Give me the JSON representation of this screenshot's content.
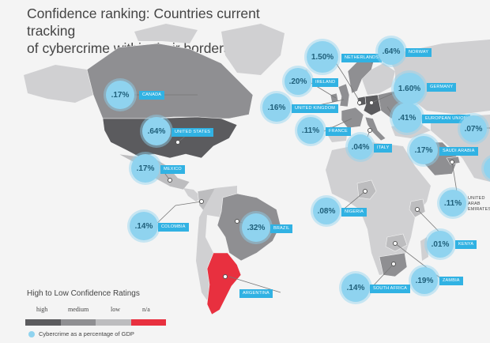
{
  "title": {
    "line1": "Confidence ranking: Countries current tracking",
    "line2": "of cybercrime within their borders"
  },
  "colors": {
    "high": "#5b5b5e",
    "medium": "#8f8f92",
    "low": "#bdbdbf",
    "na": "#e8303f",
    "bubble": "#8fd3ef",
    "tag": "#31b2e3",
    "background": "#f4f4f4",
    "unranked_land": "#d0d0d2"
  },
  "legend": {
    "title": "High to Low Confidence Ratings",
    "levels": [
      "high",
      "medium",
      "low",
      "n/a"
    ],
    "note": "Cybercrime as a percentage of GDP"
  },
  "countries": [
    {
      "name": "CANADA",
      "value": ".17%",
      "rating": "medium"
    },
    {
      "name": "UNITED STATES",
      "value": ".64%",
      "rating": "high"
    },
    {
      "name": "MEXICO",
      "value": ".17%",
      "rating": "low"
    },
    {
      "name": "COLOMBIA",
      "value": ".14%",
      "rating": "low"
    },
    {
      "name": "BRAZIL",
      "value": ".32%",
      "rating": "medium"
    },
    {
      "name": "ARGENTINA",
      "value": "",
      "rating": "n/a"
    },
    {
      "name": "NETHERLANDS",
      "value": "1.50%",
      "rating": "high"
    },
    {
      "name": "NORWAY",
      "value": ".64%",
      "rating": "medium"
    },
    {
      "name": "IRELAND",
      "value": ".20%",
      "rating": "medium"
    },
    {
      "name": "GERMANY",
      "value": "1.60%",
      "rating": "high"
    },
    {
      "name": "UNITED KINGDOM",
      "value": ".16%",
      "rating": "medium"
    },
    {
      "name": "EUROPEAN UNION",
      "value": ".41%",
      "rating": "medium"
    },
    {
      "name": "FRANCE",
      "value": ".11%",
      "rating": "medium"
    },
    {
      "name": "ITALY",
      "value": ".04%",
      "rating": "medium"
    },
    {
      "name": "SAUDI ARABIA",
      "value": ".17%",
      "rating": "medium"
    },
    {
      "name": "NIGERIA",
      "value": ".08%",
      "rating": "low"
    },
    {
      "name": "UNITED ARAB EMIRATES",
      "value": ".11%",
      "rating": "medium"
    },
    {
      "name": "KENYA",
      "value": ".01%",
      "rating": "low"
    },
    {
      "name": "ZAMBIA",
      "value": ".19%",
      "rating": "low"
    },
    {
      "name": "SOUTH AFRICA",
      "value": ".14%",
      "rating": "medium"
    },
    {
      "name": "",
      "value": ".07%",
      "rating": "medium"
    }
  ]
}
